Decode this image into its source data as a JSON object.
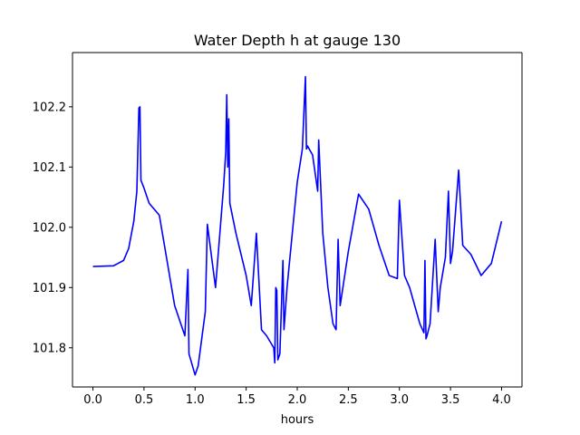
{
  "chart_data": {
    "type": "line",
    "title": "Water Depth h at gauge 130",
    "xlabel": "hours",
    "ylabel": "",
    "xlim": [
      -0.2,
      4.2
    ],
    "ylim": [
      101.735,
      102.29
    ],
    "xticks": [
      0.0,
      0.5,
      1.0,
      1.5,
      2.0,
      2.5,
      3.0,
      3.5,
      4.0
    ],
    "xtick_labels": [
      "0.0",
      "0.5",
      "1.0",
      "1.5",
      "2.0",
      "2.5",
      "3.0",
      "3.5",
      "4.0"
    ],
    "yticks": [
      101.8,
      101.9,
      102.0,
      102.1,
      102.2
    ],
    "ytick_labels": [
      "101.8",
      "101.9",
      "102.0",
      "102.1",
      "102.2"
    ],
    "grid": false,
    "color": "#0000ff",
    "series": [
      {
        "x": [
          0.0,
          0.2,
          0.3,
          0.35,
          0.4,
          0.43,
          0.45,
          0.46,
          0.47,
          0.5,
          0.55,
          0.65,
          0.8,
          0.9,
          0.93,
          0.94,
          1.0,
          1.03,
          1.1,
          1.12,
          1.2,
          1.28,
          1.3,
          1.31,
          1.32,
          1.33,
          1.34,
          1.4,
          1.5,
          1.55,
          1.6,
          1.65,
          1.7,
          1.77,
          1.78,
          1.79,
          1.8,
          1.81,
          1.83,
          1.86,
          1.87,
          1.9,
          2.0,
          2.05,
          2.08,
          2.09,
          2.1,
          2.15,
          2.2,
          2.21,
          2.25,
          2.3,
          2.35,
          2.38,
          2.4,
          2.42,
          2.5,
          2.6,
          2.7,
          2.8,
          2.9,
          2.98,
          3.0,
          3.05,
          3.1,
          3.15,
          3.2,
          3.24,
          3.25,
          3.26,
          3.27,
          3.3,
          3.35,
          3.38,
          3.4,
          3.45,
          3.48,
          3.5,
          3.52,
          3.58,
          3.62,
          3.7,
          3.8,
          3.9,
          4.0
        ],
        "y": [
          101.935,
          101.936,
          101.945,
          101.965,
          102.01,
          102.06,
          102.198,
          102.2,
          102.078,
          102.065,
          102.04,
          102.02,
          101.87,
          101.82,
          101.93,
          101.79,
          101.755,
          101.77,
          101.86,
          102.005,
          101.9,
          102.07,
          102.125,
          102.22,
          102.1,
          102.18,
          102.04,
          101.99,
          101.92,
          101.87,
          101.99,
          101.83,
          101.82,
          101.8,
          101.775,
          101.9,
          101.895,
          101.78,
          101.79,
          101.945,
          101.83,
          101.9,
          102.075,
          102.13,
          102.25,
          102.13,
          102.135,
          102.12,
          102.06,
          102.145,
          101.99,
          101.9,
          101.84,
          101.83,
          101.98,
          101.87,
          101.96,
          102.055,
          102.03,
          101.97,
          101.92,
          101.915,
          102.045,
          101.92,
          101.9,
          101.87,
          101.84,
          101.825,
          101.945,
          101.815,
          101.82,
          101.84,
          101.98,
          101.86,
          101.9,
          101.95,
          102.06,
          101.94,
          101.96,
          102.095,
          101.97,
          101.955,
          101.92,
          101.94,
          102.01
        ]
      }
    ]
  }
}
